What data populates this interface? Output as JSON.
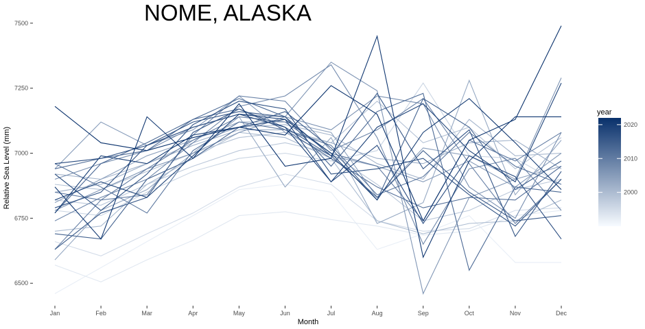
{
  "chart_data": {
    "type": "line",
    "title": "NOME,  ALASKA",
    "xlabel": "Month",
    "ylabel": "Relative Sea Level (mm)",
    "categories": [
      "Jan",
      "Feb",
      "Mar",
      "Apr",
      "May",
      "Jun",
      "Jul",
      "Aug",
      "Sep",
      "Oct",
      "Nov",
      "Dec"
    ],
    "ylim": [
      6440,
      7510
    ],
    "yticks": [
      6500,
      6750,
      7000,
      7250,
      7500
    ],
    "grid": false,
    "legend": {
      "title": "year",
      "position": "right",
      "min": 1990,
      "max": 2022,
      "ticks": [
        2000,
        2010,
        2020
      ],
      "color_low": "#f7fbff",
      "color_high": "#08306b"
    },
    "series": [
      {
        "year": 1992,
        "values": [
          6460,
          6560,
          6660,
          6760,
          6860,
          6880,
          6850,
          6630,
          6690,
          6760,
          6580,
          6580
        ]
      },
      {
        "year": 1993,
        "values": [
          6570,
          6505,
          6590,
          6665,
          6760,
          6775,
          6745,
          6720,
          6685,
          6700,
          6760,
          6780
        ]
      },
      {
        "year": 1995,
        "values": [
          6660,
          6605,
          6690,
          6770,
          6870,
          6920,
          6880,
          6740,
          6700,
          6710,
          6780,
          6790
        ]
      },
      {
        "year": 1996,
        "values": [
          6780,
          6760,
          6850,
          6930,
          6980,
          7000,
          6970,
          7010,
          7270,
          6990,
          6980,
          6880
        ]
      },
      {
        "year": 1998,
        "values": [
          6820,
          6800,
          6880,
          6950,
          7010,
          7040,
          7000,
          6880,
          6740,
          6780,
          6860,
          6900
        ]
      },
      {
        "year": 1999,
        "values": [
          6880,
          6860,
          6930,
          7000,
          7060,
          7080,
          7040,
          7200,
          7040,
          7100,
          6940,
          7060
        ]
      },
      {
        "year": 2000,
        "values": [
          6700,
          6720,
          6880,
          6980,
          7080,
          7060,
          6980,
          6740,
          6690,
          6730,
          6740,
          6820
        ]
      },
      {
        "year": 2001,
        "values": [
          6920,
          6900,
          6960,
          7040,
          7100,
          7110,
          7070,
          6960,
          6900,
          7130,
          6990,
          7000
        ]
      },
      {
        "year": 2002,
        "values": [
          6850,
          6880,
          6960,
          7030,
          7090,
          7090,
          7040,
          6980,
          6960,
          7040,
          7050,
          6940
        ]
      },
      {
        "year": 2003,
        "values": [
          6590,
          6780,
          6860,
          7000,
          7140,
          6870,
          7060,
          6730,
          6810,
          7280,
          6840,
          7050
        ]
      },
      {
        "year": 2004,
        "values": [
          6810,
          6900,
          6990,
          7050,
          7120,
          7120,
          7080,
          6830,
          7020,
          6990,
          6900,
          6950
        ]
      },
      {
        "year": 2005,
        "values": [
          6940,
          7120,
          7030,
          7090,
          7220,
          7080,
          6990,
          6950,
          6890,
          6970,
          6870,
          7000
        ]
      },
      {
        "year": 2006,
        "values": [
          6780,
          6860,
          6940,
          7000,
          7080,
          7140,
          7350,
          7240,
          6460,
          6830,
          6900,
          7290
        ]
      },
      {
        "year": 2007,
        "values": [
          6900,
          6960,
          7010,
          7100,
          7150,
          7140,
          7090,
          7220,
          7190,
          6870,
          6750,
          7080
        ]
      },
      {
        "year": 2008,
        "values": [
          6740,
          6830,
          6900,
          7040,
          7180,
          7220,
          7340,
          7060,
          6650,
          6940,
          6980,
          6780
        ]
      },
      {
        "year": 2009,
        "values": [
          6630,
          6820,
          6840,
          7070,
          7220,
          7200,
          7010,
          7090,
          7210,
          6960,
          6730,
          6900
        ]
      },
      {
        "year": 2010,
        "values": [
          6850,
          6820,
          6940,
          7050,
          7140,
          7120,
          7000,
          6950,
          6740,
          7050,
          6970,
          7080
        ]
      },
      {
        "year": 2011,
        "values": [
          6960,
          6870,
          6770,
          7010,
          7120,
          7090,
          7030,
          6840,
          6910,
          7080,
          6950,
          6880
        ]
      },
      {
        "year": 2012,
        "values": [
          6940,
          6980,
          7010,
          7130,
          7170,
          7090,
          6980,
          6870,
          6790,
          6830,
          6820,
          6950
        ]
      },
      {
        "year": 2013,
        "values": [
          6770,
          6960,
          7040,
          7130,
          7210,
          7140,
          6950,
          7160,
          7230,
          6550,
          6870,
          6850
        ]
      },
      {
        "year": 2014,
        "values": [
          6690,
          6670,
          6900,
          6980,
          7100,
          7160,
          7020,
          6820,
          7210,
          7100,
          6860,
          6970
        ]
      },
      {
        "year": 2015,
        "values": [
          6630,
          6770,
          6830,
          7080,
          7170,
          7100,
          6990,
          6830,
          7010,
          6850,
          6740,
          6760
        ]
      },
      {
        "year": 2016,
        "values": [
          6790,
          6850,
          7030,
          7120,
          7160,
          7140,
          6990,
          7230,
          6940,
          7090,
          6680,
          6930
        ]
      },
      {
        "year": 2017,
        "values": [
          6920,
          6780,
          6920,
          7110,
          7200,
          7170,
          6920,
          6940,
          6980,
          6840,
          6720,
          6900
        ]
      },
      {
        "year": 2018,
        "values": [
          6960,
          6980,
          7030,
          7100,
          7150,
          7130,
          6890,
          7030,
          6730,
          6990,
          6910,
          6670
        ]
      },
      {
        "year": 2019,
        "values": [
          6820,
          6890,
          6830,
          6990,
          7150,
          7100,
          6890,
          7100,
          7190,
          7010,
          6890,
          7270
        ]
      },
      {
        "year": 2020,
        "values": [
          6770,
          6990,
          6960,
          7070,
          7100,
          7130,
          7000,
          6820,
          7080,
          7210,
          7040,
          6860
        ]
      },
      {
        "year": 2021,
        "values": [
          6870,
          6670,
          7140,
          6980,
          7190,
          6950,
          6980,
          7450,
          6600,
          6970,
          7140,
          7140
        ]
      },
      {
        "year": 2022,
        "values": [
          7180,
          7040,
          7010,
          7060,
          7100,
          7070,
          7260,
          7150,
          6740,
          7050,
          7130,
          7490
        ]
      }
    ]
  }
}
